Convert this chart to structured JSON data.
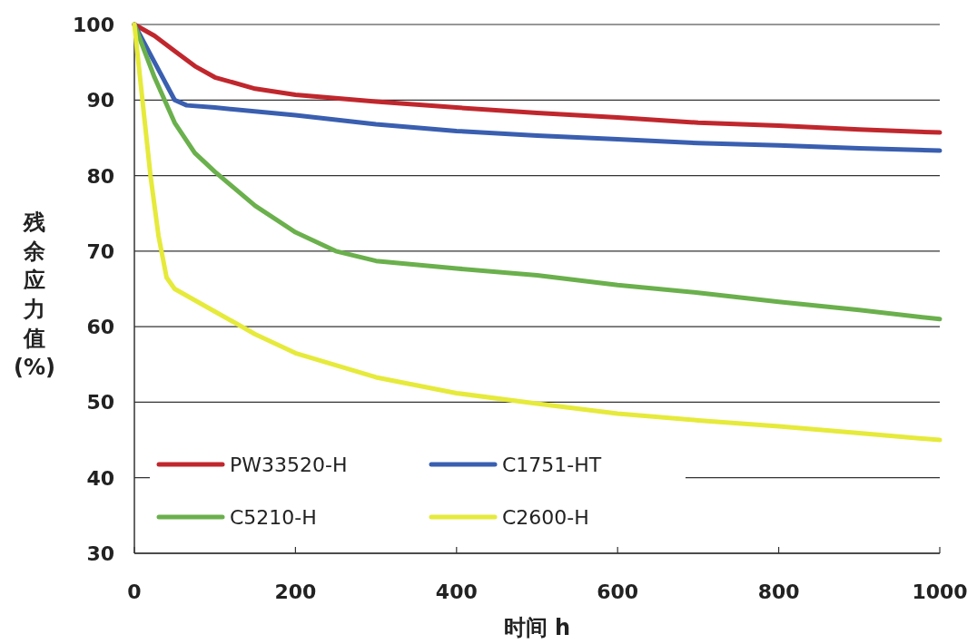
{
  "chart_data": {
    "type": "line",
    "xlabel": "时间 h",
    "ylabel": "残余应力值 (%)",
    "xlim": [
      0,
      1000
    ],
    "xticks": [
      0,
      200,
      400,
      600,
      800,
      1000
    ],
    "ylim": [
      30,
      100
    ],
    "yticks": [
      30,
      40,
      50,
      60,
      70,
      80,
      90,
      100
    ],
    "grid": "y",
    "legend": "bottom left",
    "line_style": "solid",
    "marker": "none",
    "series": [
      {
        "name": "PW33520-H",
        "color": "#c0272d",
        "x": [
          0,
          25,
          50,
          75,
          100,
          150,
          200,
          300,
          400,
          500,
          600,
          700,
          800,
          900,
          1000
        ],
        "values": [
          100,
          98.5,
          96.5,
          94.5,
          93,
          91.5,
          90.7,
          89.8,
          89,
          88.3,
          87.7,
          87,
          86.6,
          86.1,
          85.7
        ]
      },
      {
        "name": "C1751-HT",
        "color": "#3a5fb0",
        "x": [
          0,
          25,
          50,
          65,
          100,
          200,
          300,
          400,
          500,
          600,
          700,
          800,
          900,
          1000
        ],
        "values": [
          100,
          95,
          90,
          89.3,
          89,
          88,
          86.8,
          85.9,
          85.3,
          84.8,
          84.3,
          84,
          83.6,
          83.3
        ]
      },
      {
        "name": "C5210-H",
        "color": "#6ab04c",
        "x": [
          0,
          25,
          50,
          75,
          100,
          150,
          200,
          250,
          300,
          400,
          500,
          600,
          700,
          800,
          900,
          1000
        ],
        "values": [
          100,
          93,
          87,
          83,
          80.5,
          76,
          72.5,
          70,
          68.7,
          67.7,
          66.8,
          65.5,
          64.5,
          63.3,
          62.2,
          61
        ]
      },
      {
        "name": "C2600-H",
        "color": "#e6ea3a",
        "x": [
          0,
          10,
          20,
          30,
          40,
          50,
          75,
          100,
          150,
          200,
          300,
          400,
          500,
          600,
          700,
          800,
          900,
          1000
        ],
        "values": [
          100,
          90,
          80,
          72,
          66.5,
          65,
          63.5,
          62,
          59,
          56.5,
          53.3,
          51.2,
          49.8,
          48.5,
          47.6,
          46.8,
          45.9,
          45
        ]
      }
    ]
  }
}
